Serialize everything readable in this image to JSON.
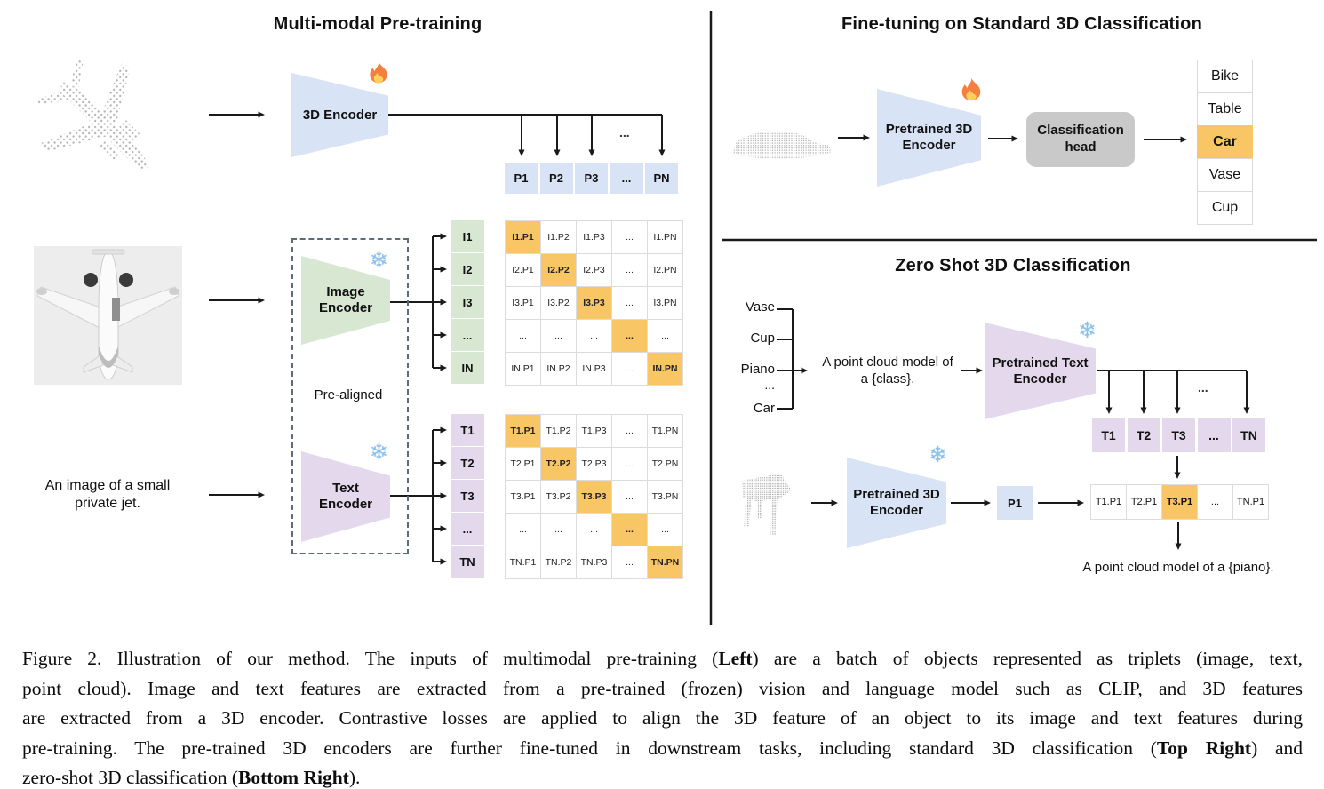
{
  "pretraining": {
    "title": "Multi-modal Pre-training",
    "encoder3d_label": "3D Encoder",
    "image_encoder_label": "Image Encoder",
    "text_encoder_label": "Text Encoder",
    "prealigned_label": "Pre-aligned",
    "jet_caption": "An image of a small private jet.",
    "ellipsis": "...",
    "p_row": [
      "P1",
      "P2",
      "P3",
      "...",
      "PN"
    ],
    "i_labels": [
      "I1",
      "I2",
      "I3",
      "...",
      "IN"
    ],
    "t_labels": [
      "T1",
      "T2",
      "T3",
      "...",
      "TN"
    ],
    "i_matrix": [
      [
        "I1.P1",
        "I1.P2",
        "I1.P3",
        "...",
        "I1.PN"
      ],
      [
        "I2.P1",
        "I2.P2",
        "I2.P3",
        "...",
        "I2.PN"
      ],
      [
        "I3.P1",
        "I3.P2",
        "I3.P3",
        "...",
        "I3.PN"
      ],
      [
        "...",
        "...",
        "...",
        "...",
        "..."
      ],
      [
        "IN.P1",
        "IN.P2",
        "IN.P3",
        "...",
        "IN.PN"
      ]
    ],
    "t_matrix": [
      [
        "T1.P1",
        "T1.P2",
        "T1.P3",
        "...",
        "T1.PN"
      ],
      [
        "T2.P1",
        "T2.P2",
        "T2.P3",
        "...",
        "T2.PN"
      ],
      [
        "T3.P1",
        "T3.P2",
        "T3.P3",
        "...",
        "T3.PN"
      ],
      [
        "...",
        "...",
        "...",
        "...",
        "..."
      ],
      [
        "TN.P1",
        "TN.P2",
        "TN.P3",
        "...",
        "TN.PN"
      ]
    ]
  },
  "finetune": {
    "title": "Fine-tuning on Standard 3D Classification",
    "encoder_label": "Pretrained 3D Encoder",
    "head_label": "Classification head",
    "classes": [
      "Bike",
      "Table",
      "Car",
      "Vase",
      "Cup"
    ],
    "highlighted_class": "Car"
  },
  "zeroshot": {
    "title": "Zero Shot 3D Classification",
    "candidate_classes": [
      "Vase",
      "Cup",
      "Piano",
      "...",
      "Car"
    ],
    "prompt": "A point cloud model of a {class}.",
    "text_encoder_label": "Pretrained Text Encoder",
    "encoder3d_label": "Pretrained 3D Encoder",
    "p1_label": "P1",
    "t_row": [
      "T1",
      "T2",
      "T3",
      "...",
      "TN"
    ],
    "result_row": [
      "T1.P1",
      "T2.P1",
      "T3.P1",
      "...",
      "TN.P1"
    ],
    "highlighted_result": "T3.P1",
    "result_caption": "A point cloud model of a {piano}.",
    "ellipsis": "..."
  },
  "icons": {
    "snowflake_glyph": "❄",
    "fire_icon": "flame",
    "point_cloud_airplane": "airplane point cloud",
    "point_cloud_car": "car point cloud",
    "point_cloud_piano": "piano point cloud",
    "jet_photo": "top view photo of white private jet"
  },
  "colors": {
    "blue": "#d9e3f6",
    "green": "#d7e7d2",
    "purple": "#e4d9ec",
    "highlight_orange": "#f9c666",
    "head_gray": "#c9c9c9"
  },
  "caption": {
    "lines": [
      [
        {
          "t": "Figure 2. Illustration of our method. The inputs of multimodal pre-training ("
        },
        {
          "t": "Left",
          "b": true
        },
        {
          "t": ") are a batch of objects represented as triplets (image, text,"
        }
      ],
      [
        {
          "t": "point cloud). Image and text features are extracted from a pre-trained (frozen) vision and language model such as CLIP, and 3D features"
        }
      ],
      [
        {
          "t": "are extracted from a 3D encoder. Contrastive losses are applied to align the 3D feature of an object to its image and text features during"
        }
      ],
      [
        {
          "t": "pre-training. The pre-trained 3D encoders are further fine-tuned in downstream tasks, including standard 3D classification ("
        },
        {
          "t": "Top Right",
          "b": true
        },
        {
          "t": ") and"
        }
      ],
      [
        {
          "t": "zero-shot 3D classification ("
        },
        {
          "t": "Bottom Right",
          "b": true
        },
        {
          "t": ")."
        }
      ]
    ]
  }
}
